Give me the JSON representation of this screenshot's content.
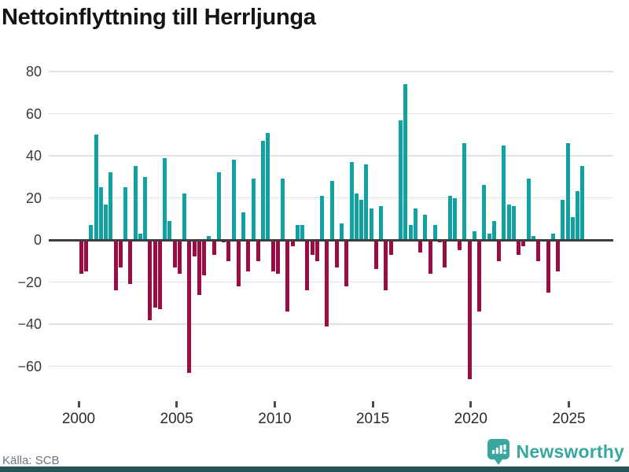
{
  "title": "Nettoinflyttning till Herrljunga",
  "source": "Källa: SCB",
  "brand": {
    "name": "Newsworthy",
    "color": "#3aa79f"
  },
  "colors": {
    "positive": "#10a2a2",
    "negative": "#9c0b43",
    "grid": "#e3e3e3",
    "zero_axis": "#3d3d3d",
    "footer_strip": "#265456",
    "background": "#ffffff"
  },
  "y_axis": {
    "tick_values": [
      80,
      60,
      40,
      20,
      0,
      -20,
      -40,
      -60
    ],
    "tick_labels": [
      "80",
      "60",
      "40",
      "20",
      "0",
      "−20",
      "−40",
      "−60"
    ]
  },
  "x_axis": {
    "tick_years": [
      2000,
      2005,
      2010,
      2015,
      2020,
      2025
    ]
  },
  "chart_data": {
    "type": "bar",
    "title": "Nettoinflyttning till Herrljunga",
    "frequency": "quarterly",
    "start": "2000Q1",
    "end": "2025Q3",
    "ylim": [
      -70,
      85
    ],
    "grid": "horizontal",
    "legend": "none",
    "series_name": "Nettoinflyttning",
    "years": [
      {
        "year": 2000,
        "values": [
          -16,
          -15,
          7,
          50
        ]
      },
      {
        "year": 2001,
        "values": [
          25,
          17,
          32,
          -24
        ]
      },
      {
        "year": 2002,
        "values": [
          -13,
          25,
          -21,
          35
        ]
      },
      {
        "year": 2003,
        "values": [
          3,
          30,
          -38,
          -32
        ]
      },
      {
        "year": 2004,
        "values": [
          -33,
          39,
          9,
          -13
        ]
      },
      {
        "year": 2005,
        "values": [
          -16,
          22,
          -63,
          -8
        ]
      },
      {
        "year": 2006,
        "values": [
          -26,
          -17,
          2,
          -7
        ]
      },
      {
        "year": 2007,
        "values": [
          32,
          -1,
          -10,
          38
        ]
      },
      {
        "year": 2008,
        "values": [
          -22,
          13,
          -15,
          29
        ]
      },
      {
        "year": 2009,
        "values": [
          -10,
          47,
          51,
          -15
        ]
      },
      {
        "year": 2010,
        "values": [
          -16,
          29,
          -34,
          -3
        ]
      },
      {
        "year": 2011,
        "values": [
          7,
          7,
          -24,
          -7
        ]
      },
      {
        "year": 2012,
        "values": [
          -10,
          21,
          -41,
          28
        ]
      },
      {
        "year": 2013,
        "values": [
          -13,
          8,
          -22,
          37
        ]
      },
      {
        "year": 2014,
        "values": [
          22,
          19,
          36,
          15
        ]
      },
      {
        "year": 2015,
        "values": [
          -14,
          16,
          -24,
          -7
        ]
      },
      {
        "year": 2016,
        "values": [
          0,
          57,
          74,
          7
        ]
      },
      {
        "year": 2017,
        "values": [
          15,
          -6,
          12,
          -16
        ]
      },
      {
        "year": 2018,
        "values": [
          7,
          -1,
          -13,
          21
        ]
      },
      {
        "year": 2019,
        "values": [
          20,
          -5,
          46,
          -66
        ]
      },
      {
        "year": 2020,
        "values": [
          4,
          -34,
          26,
          3
        ]
      },
      {
        "year": 2021,
        "values": [
          9,
          -10,
          45,
          17
        ]
      },
      {
        "year": 2022,
        "values": [
          16,
          -7,
          -3,
          29
        ]
      },
      {
        "year": 2023,
        "values": [
          2,
          -10,
          0,
          -25
        ]
      },
      {
        "year": 2024,
        "values": [
          3,
          -15,
          19,
          46
        ]
      },
      {
        "year": 2025,
        "values": [
          11,
          23,
          35
        ]
      }
    ]
  }
}
